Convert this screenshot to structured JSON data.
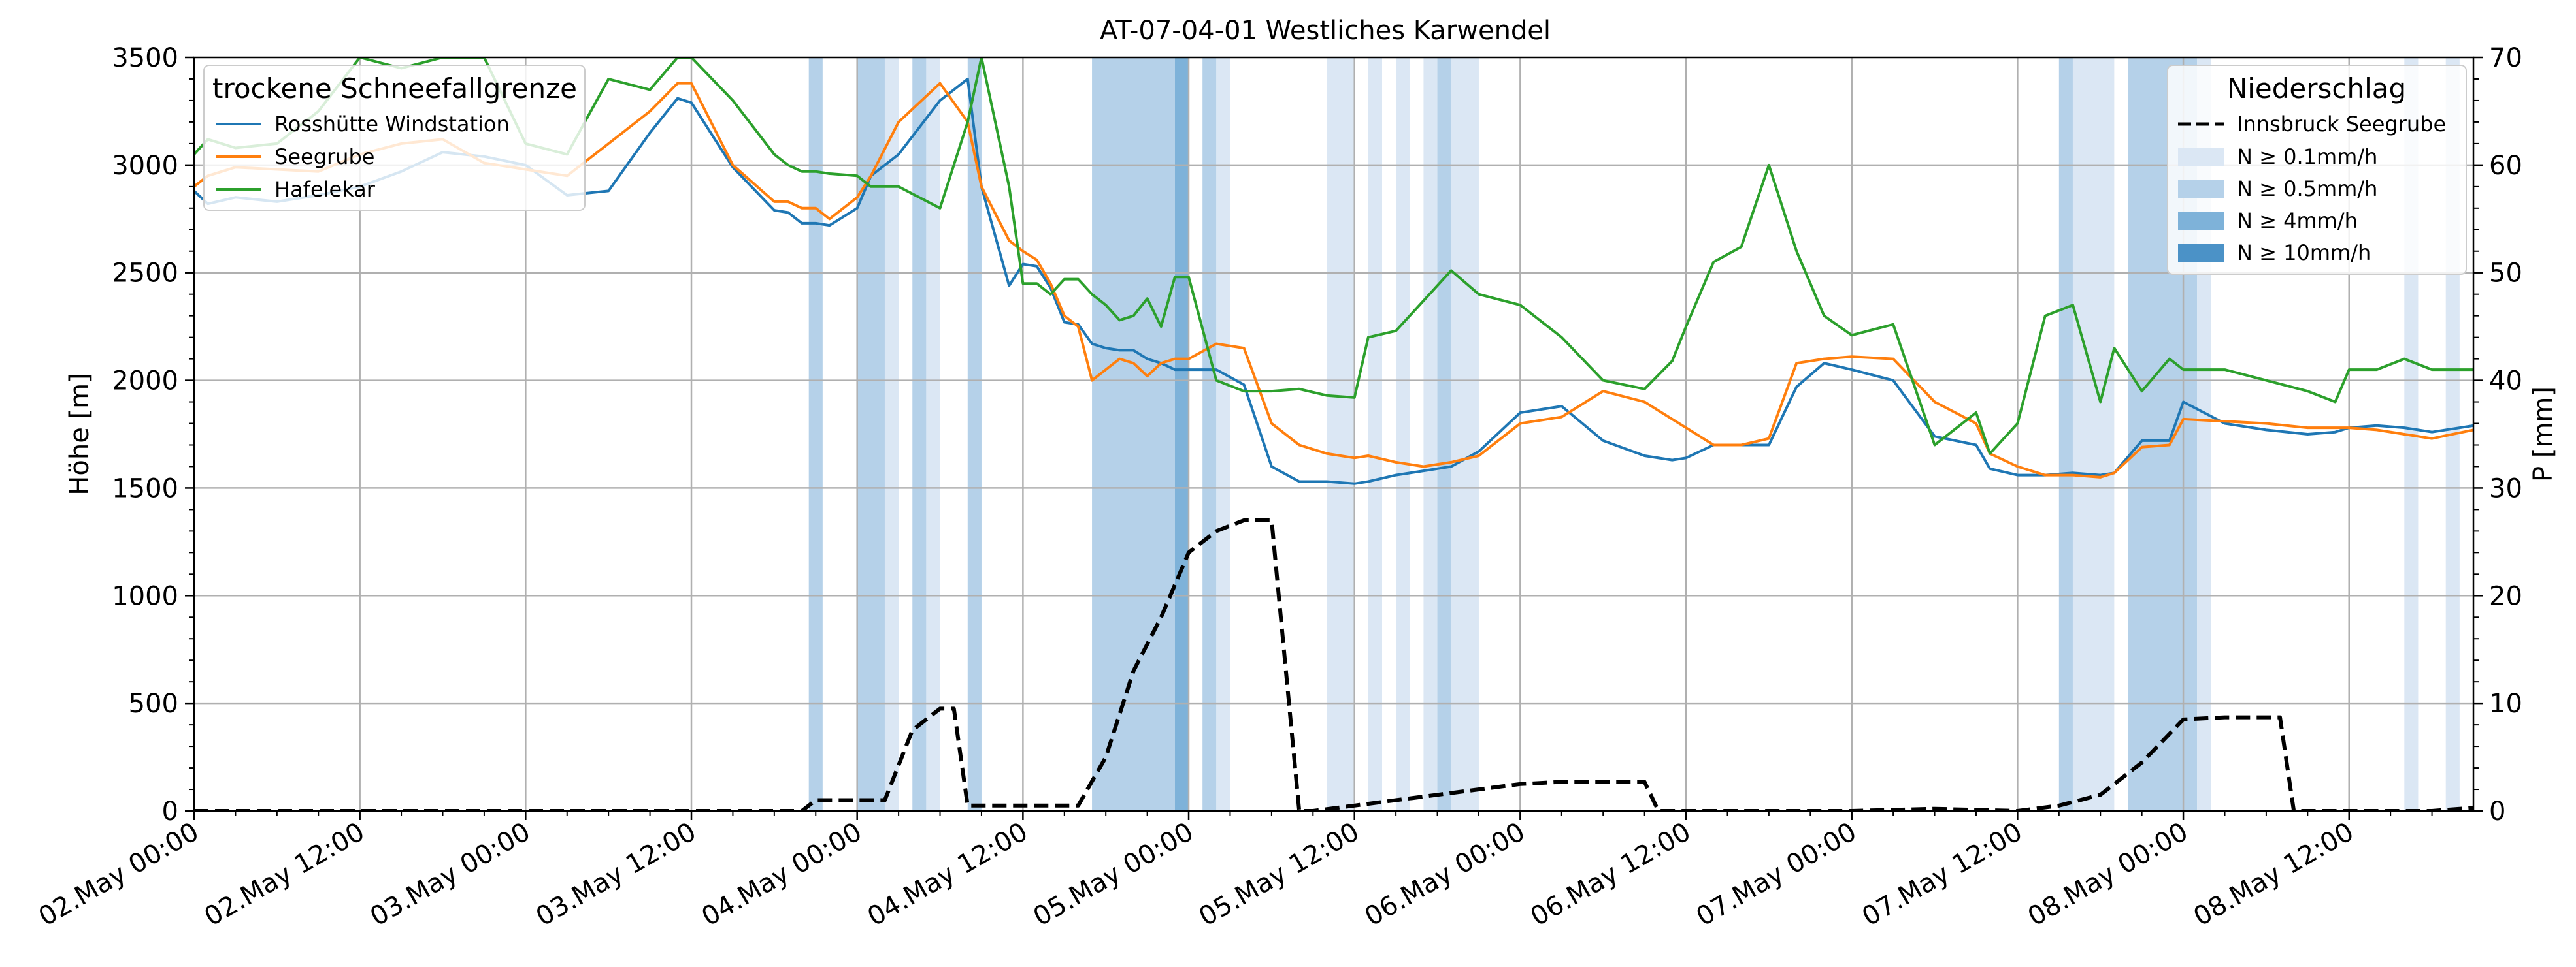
{
  "chart_data": {
    "type": "line",
    "title": "AT-07-04-01 Westliches Karwendel",
    "ylabel_left": "Höhe [m]",
    "ylabel_right": "P [mm]",
    "ylim_left": [
      0,
      3500
    ],
    "ylim_right": [
      0,
      70
    ],
    "yticks_left": [
      0,
      500,
      1000,
      1500,
      2000,
      2500,
      3000,
      3500
    ],
    "yticks_right": [
      0,
      10,
      20,
      30,
      40,
      50,
      60,
      70
    ],
    "x_start": "2025-05-02T00:00",
    "x_end": "2025-05-08T21:00",
    "x_ticks": [
      "2025-05-02T00:00",
      "2025-05-02T12:00",
      "2025-05-03T00:00",
      "2025-05-03T12:00",
      "2025-05-04T00:00",
      "2025-05-04T12:00",
      "2025-05-05T00:00",
      "2025-05-05T12:00",
      "2025-05-06T00:00",
      "2025-05-06T12:00",
      "2025-05-07T00:00",
      "2025-05-07T12:00",
      "2025-05-08T00:00",
      "2025-05-08T12:00"
    ],
    "x_tick_labels": [
      "02.May 00:00",
      "02.May 12:00",
      "03.May 00:00",
      "03.May 12:00",
      "04.May 00:00",
      "04.May 12:00",
      "05.May 00:00",
      "05.May 12:00",
      "06.May 00:00",
      "06.May 12:00",
      "07.May 00:00",
      "07.May 12:00",
      "08.May 00:00",
      "08.May 12:00"
    ],
    "grid": true,
    "legend_left": {
      "title": "trockene Schneefallgrenze",
      "placement": "top-left"
    },
    "legend_right": {
      "title": "Niederschlag",
      "placement": "top-right"
    },
    "series": [
      {
        "name": "Rosshütte Windstation",
        "color": "#1f77b4",
        "axis": "left",
        "x": [
          "2025-05-02T00:00",
          "2025-05-02T01:00",
          "2025-05-02T03:00",
          "2025-05-02T06:00",
          "2025-05-02T09:00",
          "2025-05-02T12:00",
          "2025-05-02T15:00",
          "2025-05-02T18:00",
          "2025-05-02T21:00",
          "2025-05-03T00:00",
          "2025-05-03T03:00",
          "2025-05-03T06:00",
          "2025-05-03T09:00",
          "2025-05-03T11:00",
          "2025-05-03T12:00",
          "2025-05-03T15:00",
          "2025-05-03T18:00",
          "2025-05-03T19:00",
          "2025-05-03T20:00",
          "2025-05-03T21:00",
          "2025-05-03T22:00",
          "2025-05-04T00:00",
          "2025-05-04T01:00",
          "2025-05-04T03:00",
          "2025-05-04T06:00",
          "2025-05-04T08:00",
          "2025-05-04T09:00",
          "2025-05-04T11:00",
          "2025-05-04T12:00",
          "2025-05-04T13:00",
          "2025-05-04T14:00",
          "2025-05-04T15:00",
          "2025-05-04T16:00",
          "2025-05-04T17:00",
          "2025-05-04T18:00",
          "2025-05-04T19:00",
          "2025-05-04T20:00",
          "2025-05-04T21:00",
          "2025-05-04T22:00",
          "2025-05-04T23:00",
          "2025-05-05T00:00",
          "2025-05-05T02:00",
          "2025-05-05T04:00",
          "2025-05-05T06:00",
          "2025-05-05T08:00",
          "2025-05-05T10:00",
          "2025-05-05T12:00",
          "2025-05-05T13:00",
          "2025-05-05T15:00",
          "2025-05-05T17:00",
          "2025-05-05T19:00",
          "2025-05-05T21:00",
          "2025-05-06T00:00",
          "2025-05-06T03:00",
          "2025-05-06T06:00",
          "2025-05-06T09:00",
          "2025-05-06T11:00",
          "2025-05-06T12:00",
          "2025-05-06T14:00",
          "2025-05-06T16:00",
          "2025-05-06T18:00",
          "2025-05-06T20:00",
          "2025-05-06T22:00",
          "2025-05-07T00:00",
          "2025-05-07T03:00",
          "2025-05-07T06:00",
          "2025-05-07T09:00",
          "2025-05-07T10:00",
          "2025-05-07T12:00",
          "2025-05-07T14:00",
          "2025-05-07T16:00",
          "2025-05-07T18:00",
          "2025-05-07T19:00",
          "2025-05-07T21:00",
          "2025-05-07T23:00",
          "2025-05-08T00:00",
          "2025-05-08T03:00",
          "2025-05-08T06:00",
          "2025-05-08T09:00",
          "2025-05-08T11:00",
          "2025-05-08T12:00",
          "2025-05-08T14:00",
          "2025-05-08T16:00",
          "2025-05-08T18:00",
          "2025-05-08T21:00"
        ],
        "y": [
          2880,
          2820,
          2850,
          2830,
          2860,
          2900,
          2970,
          3060,
          3040,
          3000,
          2860,
          2880,
          3150,
          3310,
          3290,
          2990,
          2790,
          2780,
          2730,
          2730,
          2720,
          2800,
          2950,
          3050,
          3300,
          3400,
          2900,
          2440,
          2540,
          2530,
          2430,
          2270,
          2260,
          2170,
          2150,
          2140,
          2140,
          2100,
          2080,
          2050,
          2050,
          2050,
          1980,
          1600,
          1530,
          1530,
          1520,
          1530,
          1560,
          1580,
          1600,
          1670,
          1850,
          1880,
          1720,
          1650,
          1630,
          1640,
          1700,
          1700,
          1700,
          1970,
          2080,
          2050,
          2000,
          1740,
          1700,
          1590,
          1560,
          1560,
          1570,
          1560,
          1570,
          1720,
          1720,
          1900,
          1800,
          1770,
          1750,
          1760,
          1780,
          1790,
          1780,
          1760,
          1790
        ]
      },
      {
        "name": "Seegrube",
        "color": "#ff7f0e",
        "axis": "left",
        "x": [
          "2025-05-02T00:00",
          "2025-05-02T01:00",
          "2025-05-02T03:00",
          "2025-05-02T06:00",
          "2025-05-02T09:00",
          "2025-05-02T12:00",
          "2025-05-02T15:00",
          "2025-05-02T18:00",
          "2025-05-02T21:00",
          "2025-05-03T00:00",
          "2025-05-03T03:00",
          "2025-05-03T06:00",
          "2025-05-03T09:00",
          "2025-05-03T11:00",
          "2025-05-03T12:00",
          "2025-05-03T15:00",
          "2025-05-03T18:00",
          "2025-05-03T19:00",
          "2025-05-03T20:00",
          "2025-05-03T21:00",
          "2025-05-03T22:00",
          "2025-05-04T00:00",
          "2025-05-04T01:00",
          "2025-05-04T03:00",
          "2025-05-04T06:00",
          "2025-05-04T08:00",
          "2025-05-04T09:00",
          "2025-05-04T11:00",
          "2025-05-04T12:00",
          "2025-05-04T13:00",
          "2025-05-04T14:00",
          "2025-05-04T15:00",
          "2025-05-04T16:00",
          "2025-05-04T17:00",
          "2025-05-04T18:00",
          "2025-05-04T19:00",
          "2025-05-04T20:00",
          "2025-05-04T21:00",
          "2025-05-04T22:00",
          "2025-05-04T23:00",
          "2025-05-05T00:00",
          "2025-05-05T02:00",
          "2025-05-05T04:00",
          "2025-05-05T06:00",
          "2025-05-05T08:00",
          "2025-05-05T10:00",
          "2025-05-05T12:00",
          "2025-05-05T13:00",
          "2025-05-05T15:00",
          "2025-05-05T17:00",
          "2025-05-05T19:00",
          "2025-05-05T21:00",
          "2025-05-06T00:00",
          "2025-05-06T03:00",
          "2025-05-06T06:00",
          "2025-05-06T09:00",
          "2025-05-06T11:00",
          "2025-05-06T12:00",
          "2025-05-06T14:00",
          "2025-05-06T16:00",
          "2025-05-06T18:00",
          "2025-05-06T20:00",
          "2025-05-06T22:00",
          "2025-05-07T00:00",
          "2025-05-07T03:00",
          "2025-05-07T06:00",
          "2025-05-07T09:00",
          "2025-05-07T10:00",
          "2025-05-07T12:00",
          "2025-05-07T14:00",
          "2025-05-07T16:00",
          "2025-05-07T18:00",
          "2025-05-07T19:00",
          "2025-05-07T21:00",
          "2025-05-07T23:00",
          "2025-05-08T00:00",
          "2025-05-08T03:00",
          "2025-05-08T06:00",
          "2025-05-08T09:00",
          "2025-05-08T11:00",
          "2025-05-08T12:00",
          "2025-05-08T14:00",
          "2025-05-08T16:00",
          "2025-05-08T18:00",
          "2025-05-08T21:00"
        ],
        "y": [
          2900,
          2950,
          2990,
          2980,
          2970,
          3050,
          3100,
          3120,
          3010,
          2980,
          2950,
          3100,
          3250,
          3380,
          3380,
          3000,
          2830,
          2830,
          2800,
          2800,
          2750,
          2850,
          2950,
          3200,
          3380,
          3200,
          2900,
          2650,
          2600,
          2560,
          2450,
          2300,
          2250,
          2000,
          2050,
          2100,
          2080,
          2020,
          2080,
          2100,
          2100,
          2170,
          2150,
          1800,
          1700,
          1660,
          1640,
          1650,
          1620,
          1600,
          1620,
          1650,
          1800,
          1830,
          1950,
          1900,
          1820,
          1780,
          1700,
          1700,
          1730,
          2080,
          2100,
          2110,
          2100,
          1900,
          1800,
          1660,
          1600,
          1560,
          1560,
          1550,
          1570,
          1690,
          1700,
          1820,
          1810,
          1800,
          1780,
          1780,
          1780,
          1770,
          1750,
          1730,
          1770
        ]
      },
      {
        "name": "Hafelekar",
        "color": "#2ca02c",
        "axis": "left",
        "x": [
          "2025-05-02T00:00",
          "2025-05-02T01:00",
          "2025-05-02T03:00",
          "2025-05-02T06:00",
          "2025-05-02T09:00",
          "2025-05-02T12:00",
          "2025-05-02T15:00",
          "2025-05-02T18:00",
          "2025-05-02T21:00",
          "2025-05-03T00:00",
          "2025-05-03T03:00",
          "2025-05-03T06:00",
          "2025-05-03T09:00",
          "2025-05-03T11:00",
          "2025-05-03T12:00",
          "2025-05-03T15:00",
          "2025-05-03T18:00",
          "2025-05-03T19:00",
          "2025-05-03T20:00",
          "2025-05-03T21:00",
          "2025-05-03T22:00",
          "2025-05-04T00:00",
          "2025-05-04T01:00",
          "2025-05-04T03:00",
          "2025-05-04T06:00",
          "2025-05-04T08:00",
          "2025-05-04T09:00",
          "2025-05-04T11:00",
          "2025-05-04T12:00",
          "2025-05-04T13:00",
          "2025-05-04T14:00",
          "2025-05-04T15:00",
          "2025-05-04T16:00",
          "2025-05-04T17:00",
          "2025-05-04T18:00",
          "2025-05-04T19:00",
          "2025-05-04T20:00",
          "2025-05-04T21:00",
          "2025-05-04T22:00",
          "2025-05-04T23:00",
          "2025-05-05T00:00",
          "2025-05-05T02:00",
          "2025-05-05T04:00",
          "2025-05-05T06:00",
          "2025-05-05T08:00",
          "2025-05-05T10:00",
          "2025-05-05T12:00",
          "2025-05-05T13:00",
          "2025-05-05T15:00",
          "2025-05-05T17:00",
          "2025-05-05T19:00",
          "2025-05-05T21:00",
          "2025-05-06T00:00",
          "2025-05-06T03:00",
          "2025-05-06T06:00",
          "2025-05-06T09:00",
          "2025-05-06T11:00",
          "2025-05-06T12:00",
          "2025-05-06T14:00",
          "2025-05-06T16:00",
          "2025-05-06T18:00",
          "2025-05-06T20:00",
          "2025-05-06T22:00",
          "2025-05-07T00:00",
          "2025-05-07T03:00",
          "2025-05-07T06:00",
          "2025-05-07T09:00",
          "2025-05-07T10:00",
          "2025-05-07T12:00",
          "2025-05-07T14:00",
          "2025-05-07T16:00",
          "2025-05-07T18:00",
          "2025-05-07T19:00",
          "2025-05-07T21:00",
          "2025-05-07T23:00",
          "2025-05-08T00:00",
          "2025-05-08T03:00",
          "2025-05-08T06:00",
          "2025-05-08T09:00",
          "2025-05-08T11:00",
          "2025-05-08T12:00",
          "2025-05-08T14:00",
          "2025-05-08T16:00",
          "2025-05-08T18:00",
          "2025-05-08T21:00"
        ],
        "y": [
          3050,
          3120,
          3080,
          3100,
          3250,
          3500,
          3450,
          3500,
          3500,
          3100,
          3050,
          3400,
          3350,
          3500,
          3500,
          3300,
          3050,
          3000,
          2970,
          2970,
          2960,
          2950,
          2900,
          2900,
          2800,
          3200,
          3500,
          2900,
          2450,
          2450,
          2400,
          2470,
          2470,
          2400,
          2350,
          2280,
          2300,
          2380,
          2250,
          2480,
          2480,
          2000,
          1950,
          1950,
          1960,
          1930,
          1920,
          2200,
          2230,
          2370,
          2510,
          2400,
          2350,
          2200,
          2000,
          1960,
          2090,
          2250,
          2550,
          2620,
          3000,
          2600,
          2300,
          2210,
          2260,
          1700,
          1850,
          1660,
          1800,
          2300,
          2350,
          1900,
          2150,
          1950,
          2100,
          2050,
          2050,
          2000,
          1950,
          1900,
          2050,
          2050,
          2100,
          2050,
          2050
        ]
      },
      {
        "name": "Innsbruck Seegrube",
        "color": "#000000",
        "axis": "right",
        "style": "dashed",
        "x": [
          "2025-05-02T00:00",
          "2025-05-03T20:00",
          "2025-05-03T21:00",
          "2025-05-04T00:00",
          "2025-05-04T02:00",
          "2025-05-04T04:00",
          "2025-05-04T06:00",
          "2025-05-04T07:00",
          "2025-05-04T08:00",
          "2025-05-04T12:00",
          "2025-05-04T16:00",
          "2025-05-04T18:00",
          "2025-05-04T20:00",
          "2025-05-04T22:00",
          "2025-05-05T00:00",
          "2025-05-05T02:00",
          "2025-05-05T04:00",
          "2025-05-05T06:00",
          "2025-05-05T08:00",
          "2025-05-05T09:00",
          "2025-05-05T12:00",
          "2025-05-05T15:00",
          "2025-05-05T18:00",
          "2025-05-06T00:00",
          "2025-05-06T03:00",
          "2025-05-06T06:00",
          "2025-05-06T09:00",
          "2025-05-06T10:00",
          "2025-05-06T12:00",
          "2025-05-07T00:00",
          "2025-05-07T06:00",
          "2025-05-07T12:00",
          "2025-05-07T15:00",
          "2025-05-07T18:00",
          "2025-05-07T21:00",
          "2025-05-08T00:00",
          "2025-05-08T03:00",
          "2025-05-08T06:00",
          "2025-05-08T07:00",
          "2025-05-08T08:00",
          "2025-05-08T12:00",
          "2025-05-08T18:00",
          "2025-05-08T21:00"
        ],
        "y": [
          0,
          0,
          1,
          1,
          1,
          7.5,
          9.5,
          9.5,
          0.5,
          0.5,
          0.5,
          5,
          13,
          18,
          24,
          26,
          27,
          27,
          0,
          0,
          0.5,
          1,
          1.5,
          2.5,
          2.7,
          2.7,
          2.7,
          0,
          0,
          0,
          0.2,
          0,
          0.5,
          1.5,
          4.5,
          8.5,
          8.7,
          8.7,
          8.7,
          0,
          0,
          0,
          0.3
        ]
      }
    ],
    "precip_legend": [
      {
        "label": "N ≥ 0.1mm/h",
        "color": "#dbe7f4"
      },
      {
        "label": "N ≥ 0.5mm/h",
        "color": "#b5d1e9"
      },
      {
        "label": "N ≥ 4mm/h",
        "color": "#7eb2d9"
      },
      {
        "label": "N ≥ 10mm/h",
        "color": "#4b92c7"
      }
    ],
    "precip_bands": [
      {
        "start": "2025-05-03T20:30",
        "end": "2025-05-03T21:30",
        "level": 1
      },
      {
        "start": "2025-05-04T00:00",
        "end": "2025-05-04T02:00",
        "level": 1
      },
      {
        "start": "2025-05-04T02:00",
        "end": "2025-05-04T03:00",
        "level": 0
      },
      {
        "start": "2025-05-04T04:00",
        "end": "2025-05-04T05:00",
        "level": 1
      },
      {
        "start": "2025-05-04T05:00",
        "end": "2025-05-04T06:00",
        "level": 0
      },
      {
        "start": "2025-05-04T08:00",
        "end": "2025-05-04T09:00",
        "level": 1
      },
      {
        "start": "2025-05-04T17:00",
        "end": "2025-05-04T23:00",
        "level": 1
      },
      {
        "start": "2025-05-04T23:00",
        "end": "2025-05-05T00:00",
        "level": 2
      },
      {
        "start": "2025-05-05T01:00",
        "end": "2025-05-05T02:00",
        "level": 1
      },
      {
        "start": "2025-05-05T02:00",
        "end": "2025-05-05T03:00",
        "level": 0
      },
      {
        "start": "2025-05-05T10:00",
        "end": "2025-05-05T12:00",
        "level": 0
      },
      {
        "start": "2025-05-05T13:00",
        "end": "2025-05-05T14:00",
        "level": 0
      },
      {
        "start": "2025-05-05T15:00",
        "end": "2025-05-05T16:00",
        "level": 0
      },
      {
        "start": "2025-05-05T17:00",
        "end": "2025-05-05T18:00",
        "level": 0
      },
      {
        "start": "2025-05-05T18:00",
        "end": "2025-05-05T19:00",
        "level": 1
      },
      {
        "start": "2025-05-05T19:00",
        "end": "2025-05-05T21:00",
        "level": 0
      },
      {
        "start": "2025-05-07T15:00",
        "end": "2025-05-07T16:00",
        "level": 1
      },
      {
        "start": "2025-05-07T16:00",
        "end": "2025-05-07T19:00",
        "level": 0
      },
      {
        "start": "2025-05-07T20:00",
        "end": "2025-05-08T01:00",
        "level": 1
      },
      {
        "start": "2025-05-08T01:00",
        "end": "2025-05-08T02:00",
        "level": 0
      },
      {
        "start": "2025-05-08T16:00",
        "end": "2025-05-08T17:00",
        "level": 0
      },
      {
        "start": "2025-05-08T19:00",
        "end": "2025-05-08T20:00",
        "level": 0
      }
    ]
  }
}
